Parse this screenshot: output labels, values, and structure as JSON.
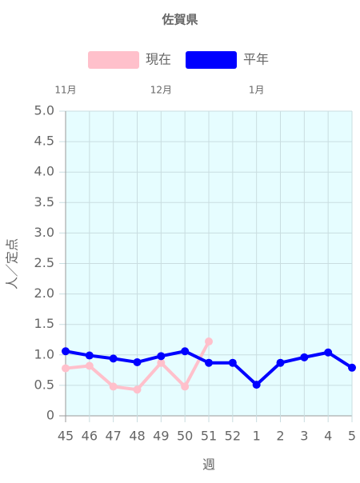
{
  "chart_data": {
    "type": "line",
    "title": "佐賀県",
    "x_label": "週",
    "y_label": "人／定点",
    "categories": [
      "45",
      "46",
      "47",
      "48",
      "49",
      "50",
      "51",
      "52",
      "1",
      "2",
      "3",
      "4",
      "5"
    ],
    "top_labels": [
      "11月",
      null,
      null,
      null,
      "12月",
      null,
      null,
      null,
      "1月",
      null,
      null,
      null,
      null
    ],
    "series": [
      {
        "name": "現在",
        "color": "#ffc0cb",
        "values": [
          0.78,
          0.82,
          0.48,
          0.43,
          0.87,
          0.48,
          1.22,
          null,
          null,
          null,
          null,
          null,
          null
        ]
      },
      {
        "name": "平年",
        "color": "#0000ff",
        "values": [
          1.06,
          0.99,
          0.94,
          0.88,
          0.98,
          1.06,
          0.87,
          0.87,
          0.51,
          0.87,
          0.96,
          1.04,
          0.79
        ]
      }
    ],
    "ylim": [
      0,
      5
    ],
    "yticks": [
      0,
      0.5,
      {
        "value": 1,
        "label": "1.0"
      },
      1.5,
      {
        "value": 2,
        "label": "2.0"
      },
      2.5,
      {
        "value": 3,
        "label": "3.0"
      },
      3.5,
      {
        "value": 4,
        "label": "4.0"
      },
      4.5,
      {
        "value": 5,
        "label": "5.0"
      }
    ],
    "grid": true,
    "plot_background": "#e6fdff"
  }
}
